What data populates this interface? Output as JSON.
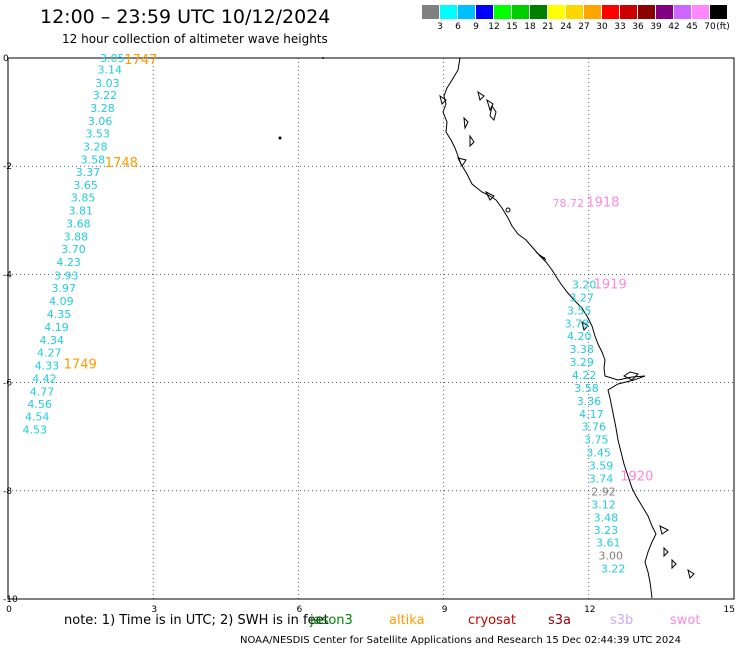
{
  "title": "12:00 – 23:59 UTC 10/12/2024",
  "subtitle": "12 hour collection of altimeter wave heights",
  "scale": {
    "unit": "(ft)",
    "colors": [
      "#808080",
      "#00ffff",
      "#00bfff",
      "#0000ff",
      "#00ff00",
      "#00cc00",
      "#008000",
      "#ffff00",
      "#ffd700",
      "#ffa500",
      "#ff0000",
      "#cc0000",
      "#8b0000",
      "#800080",
      "#cc66ff",
      "#ff88ff",
      "#000000"
    ],
    "labels": [
      "3",
      "6",
      "9",
      "12",
      "15",
      "18",
      "21",
      "24",
      "27",
      "30",
      "33",
      "36",
      "39",
      "42",
      "45",
      "70"
    ]
  },
  "axes": {
    "x_ticks": [
      "0",
      "3",
      "6",
      "9",
      "12",
      "15"
    ],
    "y_ticks": [
      "0",
      "-2",
      "-4",
      "-6",
      "-8",
      "-10"
    ]
  },
  "tracks": {
    "orange": {
      "color": "#ff9900",
      "labels": [
        {
          "text": "1747",
          "lon": 2.4,
          "lat": -0.02
        },
        {
          "text": "1748",
          "lon": 2.0,
          "lat": -1.92
        },
        {
          "text": "1749",
          "lon": 1.15,
          "lat": -5.65
        }
      ],
      "values": [
        {
          "text": "3.05",
          "lon": 1.9,
          "lat": 0.0
        },
        {
          "text": "3.14",
          "lon": 1.85,
          "lat": -0.21
        },
        {
          "text": "3.03",
          "lon": 1.8,
          "lat": -0.46
        },
        {
          "text": "3.22",
          "lon": 1.75,
          "lat": -0.68
        },
        {
          "text": "3.28",
          "lon": 1.7,
          "lat": -0.92
        },
        {
          "text": "3.06",
          "lon": 1.65,
          "lat": -1.16
        },
        {
          "text": "3.53",
          "lon": 1.6,
          "lat": -1.4
        },
        {
          "text": "3.28",
          "lon": 1.55,
          "lat": -1.64
        },
        {
          "text": "3.58",
          "lon": 1.5,
          "lat": -1.88
        },
        {
          "text": "3.37",
          "lon": 1.4,
          "lat": -2.11
        },
        {
          "text": "3.65",
          "lon": 1.35,
          "lat": -2.35
        },
        {
          "text": "3.85",
          "lon": 1.3,
          "lat": -2.58
        },
        {
          "text": "3.81",
          "lon": 1.25,
          "lat": -2.82
        },
        {
          "text": "3.68",
          "lon": 1.2,
          "lat": -3.06
        },
        {
          "text": "3.88",
          "lon": 1.15,
          "lat": -3.3
        },
        {
          "text": "3.70",
          "lon": 1.1,
          "lat": -3.53
        },
        {
          "text": "4.23",
          "lon": 1.0,
          "lat": -3.77
        },
        {
          "text": "3.93",
          "lon": 0.95,
          "lat": -4.02
        },
        {
          "text": "3.97",
          "lon": 0.9,
          "lat": -4.25
        },
        {
          "text": "4.09",
          "lon": 0.85,
          "lat": -4.49
        },
        {
          "text": "4.35",
          "lon": 0.8,
          "lat": -4.73
        },
        {
          "text": "4.19",
          "lon": 0.75,
          "lat": -4.97
        },
        {
          "text": "4.34",
          "lon": 0.65,
          "lat": -5.21
        },
        {
          "text": "4.27",
          "lon": 0.6,
          "lat": -5.44
        },
        {
          "text": "4.33",
          "lon": 0.55,
          "lat": -5.68
        },
        {
          "text": "4.42",
          "lon": 0.5,
          "lat": -5.92
        },
        {
          "text": "4.77",
          "lon": 0.45,
          "lat": -6.16
        },
        {
          "text": "4.56",
          "lon": 0.4,
          "lat": -6.4
        },
        {
          "text": "4.54",
          "lon": 0.35,
          "lat": -6.63
        },
        {
          "text": "4.53",
          "lon": 0.3,
          "lat": -6.87
        }
      ]
    },
    "pink": {
      "color": "#ff88dd",
      "labels": [
        {
          "text": "1918",
          "lon": 11.95,
          "lat": -2.65
        },
        {
          "text": "1919",
          "lon": 12.1,
          "lat": -4.17
        },
        {
          "text": "1920",
          "lon": 12.65,
          "lat": -7.72
        }
      ],
      "values": [
        {
          "text": "78.72",
          "lon": 11.25,
          "lat": -2.68,
          "color": "#ff88dd"
        },
        {
          "text": "3.20",
          "lon": 11.65,
          "lat": -4.19
        },
        {
          "text": "3.27",
          "lon": 11.6,
          "lat": -4.43
        },
        {
          "text": "3.55",
          "lon": 11.55,
          "lat": -4.67
        },
        {
          "text": "3.78",
          "lon": 11.5,
          "lat": -4.91
        },
        {
          "text": "4.20",
          "lon": 11.55,
          "lat": -5.14
        },
        {
          "text": "3.38",
          "lon": 11.6,
          "lat": -5.38
        },
        {
          "text": "3.29",
          "lon": 11.6,
          "lat": -5.62
        },
        {
          "text": "4.22",
          "lon": 11.65,
          "lat": -5.86
        },
        {
          "text": "3.58",
          "lon": 11.7,
          "lat": -6.1
        },
        {
          "text": "3.36",
          "lon": 11.75,
          "lat": -6.34
        },
        {
          "text": "4.17",
          "lon": 11.8,
          "lat": -6.58
        },
        {
          "text": "3.76",
          "lon": 11.85,
          "lat": -6.81
        },
        {
          "text": "3.75",
          "lon": 11.9,
          "lat": -7.05
        },
        {
          "text": "3.45",
          "lon": 11.95,
          "lat": -7.29
        },
        {
          "text": "3.59",
          "lon": 12.0,
          "lat": -7.53
        },
        {
          "text": "3.74",
          "lon": 12.0,
          "lat": -7.77
        },
        {
          "text": "2.92",
          "lon": 12.05,
          "lat": -8.01,
          "color": "#808080"
        },
        {
          "text": "3.12",
          "lon": 12.05,
          "lat": -8.25
        },
        {
          "text": "3.48",
          "lon": 12.1,
          "lat": -8.49
        },
        {
          "text": "3.23",
          "lon": 12.1,
          "lat": -8.72
        },
        {
          "text": "3.61",
          "lon": 12.15,
          "lat": -8.96
        },
        {
          "text": "3.00",
          "lon": 12.2,
          "lat": -9.2,
          "color": "#808080"
        },
        {
          "text": "3.22",
          "lon": 12.25,
          "lat": -9.44
        }
      ]
    }
  },
  "note": {
    "prefix": "note:  1) Time is in UTC; 2) SWH is in feet",
    "satellites": [
      {
        "name": "jason3",
        "color": "#008000"
      },
      {
        "name": "altika",
        "color": "#ff9900"
      },
      {
        "name": "cryosat",
        "color": "#cc0000"
      },
      {
        "name": "s3a",
        "color": "#8b0000"
      },
      {
        "name": "s3b",
        "color": "#ccaaff"
      },
      {
        "name": "swot",
        "color": "#ff88dd"
      }
    ]
  },
  "credit": "NOAA/NESDIS Center for Satellite Applications and Research    15 Dec 02:44:39 UTC 2024"
}
